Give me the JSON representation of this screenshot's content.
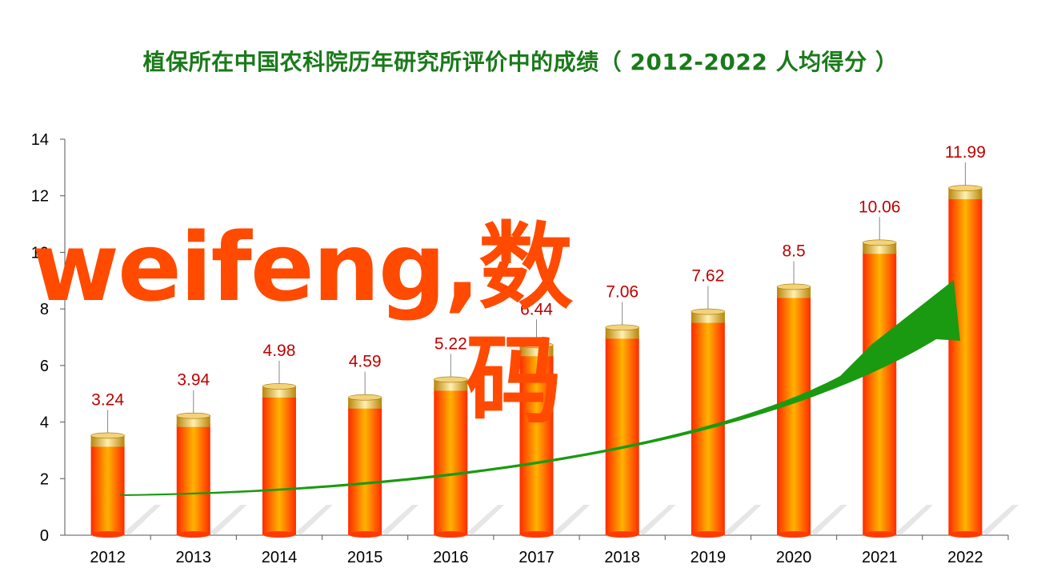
{
  "title": "植保所在中国农科院历年研究所评价中的成绩（ 2012-2022 人均得分 ）",
  "watermark": {
    "line1": "weifeng,数",
    "line2": "码"
  },
  "colors": {
    "title": "#1a7a1a",
    "bar": "#ff3a00",
    "bar_cap": "#d9a520",
    "arrow": "#1a9a10",
    "watermark": "#ff4a00",
    "label": "#c00000"
  },
  "chart_data": {
    "type": "bar",
    "title": "植保所在中国农科院历年研究所评价中的成绩（ 2012-2022 人均得分 ）",
    "xlabel": "",
    "ylabel": "",
    "categories": [
      "2012",
      "2013",
      "2014",
      "2015",
      "2016",
      "2017",
      "2018",
      "2019",
      "2020",
      "2021",
      "2022"
    ],
    "series": [
      {
        "values": [
          3.24,
          3.94,
          4.98,
          4.59,
          5.22,
          6.44,
          7.06,
          7.62,
          8.5,
          10.06,
          11.99
        ]
      }
    ],
    "data_labels": [
      "3.24",
      "3.94",
      "4.98",
      "4.59",
      "5.22",
      "6.44",
      "7.06",
      "7.62",
      "8.5",
      "10.06",
      "11.99"
    ],
    "ylim": [
      0,
      14
    ],
    "yticks": [
      0,
      2,
      4,
      6,
      8,
      10,
      12,
      14
    ],
    "grid": false,
    "trend_arrow": true
  }
}
